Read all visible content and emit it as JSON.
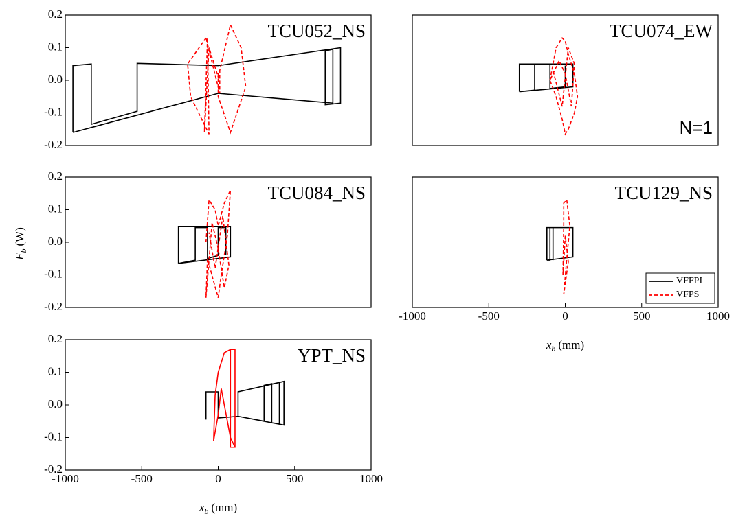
{
  "y_label": {
    "main": "F",
    "sub": "b",
    "unit": "(W)"
  },
  "chart_data": [
    {
      "type": "line",
      "title": "TCU052_NS",
      "xlim": [
        -1000,
        1000
      ],
      "ylim": [
        -0.2,
        0.2
      ],
      "yticks": [
        0.2,
        0.1,
        {
          "value": 0,
          "label": "0.0"
        },
        -0.1,
        -0.2
      ],
      "series": [
        {
          "name": "VFFPI",
          "color": "#000000",
          "dashed": false,
          "x": [
            -950,
            -950,
            -830,
            -830,
            -530,
            -530,
            0,
            800,
            800,
            700,
            700,
            750,
            750,
            0,
            -950
          ],
          "values": [
            -0.16,
            0.045,
            0.05,
            -0.135,
            -0.095,
            0.052,
            0.045,
            0.1,
            -0.07,
            -0.075,
            0.09,
            0.095,
            -0.07,
            -0.04,
            -0.16
          ]
        },
        {
          "name": "VFPS",
          "color": "#ff0000",
          "dashed": true,
          "x": [
            -80,
            -200,
            -180,
            -60,
            -70,
            -90,
            -60,
            0,
            80,
            150,
            180,
            80,
            0,
            0,
            10,
            10,
            -80
          ],
          "values": [
            0.13,
            0.05,
            -0.05,
            -0.165,
            0.13,
            -0.16,
            0.1,
            0.01,
            0.17,
            0.1,
            -0.02,
            -0.16,
            -0.05,
            0.02,
            0.03,
            -0.04,
            0.13
          ]
        }
      ]
    },
    {
      "type": "line",
      "title": "TCU074_EW",
      "annotation": "N=1",
      "xlim": [
        -1000,
        1000
      ],
      "ylim": [
        -0.2,
        0.2
      ],
      "series": [
        {
          "name": "VFFPI",
          "color": "#000000",
          "dashed": false,
          "x": [
            -300,
            -300,
            50,
            50,
            -300,
            -200,
            -200,
            -100,
            -100,
            0,
            0
          ],
          "values": [
            -0.035,
            0.05,
            0.05,
            -0.02,
            -0.035,
            -0.03,
            0.048,
            0.048,
            -0.025,
            -0.02,
            0.045
          ]
        },
        {
          "name": "VFPS",
          "color": "#ff0000",
          "dashed": true,
          "x": [
            -100,
            -60,
            -20,
            0,
            20,
            60,
            80,
            60,
            20,
            0,
            -20,
            -60,
            -100,
            -40,
            0,
            40,
            60,
            20,
            -20,
            -80
          ],
          "values": [
            0,
            0.1,
            0.13,
            0.12,
            0.08,
            0.02,
            -0.05,
            -0.1,
            -0.15,
            -0.165,
            -0.12,
            -0.05,
            0,
            0.06,
            0.02,
            -0.08,
            0.05,
            0.1,
            -0.08,
            0.03
          ]
        }
      ]
    },
    {
      "type": "line",
      "title": "TCU084_NS",
      "xlim": [
        -1000,
        1000
      ],
      "ylim": [
        -0.2,
        0.2
      ],
      "yticks": [
        0.2,
        0.1,
        {
          "value": 0,
          "label": "0.0"
        },
        -0.1,
        -0.2
      ],
      "series": [
        {
          "name": "VFFPI",
          "color": "#000000",
          "dashed": false,
          "x": [
            -260,
            -260,
            80,
            80,
            -260,
            -150,
            -150,
            -70,
            -70,
            0,
            0,
            50,
            50
          ],
          "values": [
            -0.065,
            0.048,
            0.048,
            -0.045,
            -0.065,
            -0.055,
            0.045,
            0.045,
            -0.05,
            -0.04,
            0.045,
            0.045,
            -0.04
          ]
        },
        {
          "name": "VFPS",
          "color": "#ff0000",
          "dashed": true,
          "x": [
            -80,
            -60,
            -20,
            0,
            40,
            80,
            60,
            20,
            0,
            -30,
            -70,
            -80,
            -40,
            0,
            40,
            70,
            30,
            -20,
            -60
          ],
          "values": [
            0,
            0.13,
            0.1,
            0.05,
            0.12,
            0.16,
            0.02,
            -0.1,
            -0.17,
            -0.12,
            -0.05,
            -0.17,
            0.06,
            -0.02,
            -0.14,
            -0.07,
            0.08,
            -0.08,
            0.03
          ]
        }
      ]
    },
    {
      "type": "line",
      "title": "TCU129_NS",
      "xlabel": {
        "main": "x",
        "sub": "b",
        "unit": "(mm)"
      },
      "xlim": [
        -1000,
        1000
      ],
      "ylim": [
        -0.2,
        0.2
      ],
      "xticks": [
        -1000,
        -500,
        0,
        500,
        1000
      ],
      "legend": "lower right",
      "series": [
        {
          "name": "VFFPI",
          "color": "#000000",
          "dashed": false,
          "x": [
            -120,
            -120,
            50,
            50,
            -120,
            -100,
            -100,
            -80,
            -80
          ],
          "values": [
            -0.055,
            0.045,
            0.045,
            -0.045,
            -0.055,
            -0.055,
            0.045,
            0.045,
            -0.055
          ]
        },
        {
          "name": "VFPS",
          "color": "#ff0000",
          "dashed": true,
          "x": [
            -10,
            -10,
            10,
            30,
            10,
            -10,
            20,
            0,
            -15,
            -10
          ],
          "values": [
            0.05,
            0.12,
            0.13,
            0.05,
            -0.05,
            -0.16,
            -0.06,
            0.02,
            -0.1,
            0.05
          ]
        }
      ]
    },
    {
      "type": "line",
      "title": "YPT_NS",
      "xlabel": {
        "main": "x",
        "sub": "b",
        "unit": "(mm)"
      },
      "xlim": [
        -1000,
        1000
      ],
      "ylim": [
        -0.2,
        0.2
      ],
      "xticks": [
        -1000,
        -500,
        0,
        500,
        1000
      ],
      "yticks": [
        0.2,
        0.1,
        {
          "value": 0,
          "label": "0.0"
        },
        -0.1,
        -0.2
      ],
      "series": [
        {
          "name": "VFFPI",
          "color": "#000000",
          "dashed": false,
          "x": [
            -80,
            -80,
            0,
            0,
            130,
            430,
            430,
            130,
            130,
            300,
            300,
            350,
            350,
            400,
            400
          ],
          "values": [
            -0.045,
            0.04,
            0.04,
            -0.04,
            -0.035,
            -0.062,
            0.072,
            0.04,
            -0.035,
            -0.05,
            0.06,
            0.065,
            -0.055,
            -0.058,
            0.068
          ]
        },
        {
          "name": "VFPS",
          "color": "#ff0000",
          "dashed": false,
          "x": [
            -30,
            -20,
            0,
            40,
            80,
            110,
            110,
            80,
            80,
            110,
            110,
            80,
            20,
            0,
            -30
          ],
          "values": [
            -0.11,
            0.03,
            0.1,
            0.16,
            0.17,
            0.17,
            -0.13,
            -0.13,
            0.17,
            0.17,
            -0.13,
            -0.1,
            0.05,
            -0.03,
            -0.11
          ]
        }
      ]
    }
  ]
}
